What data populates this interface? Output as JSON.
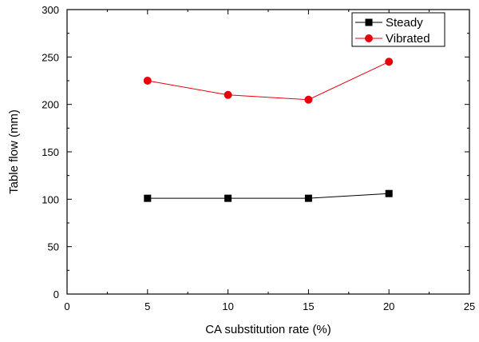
{
  "chart_data": {
    "type": "line",
    "title": "",
    "xlabel": "CA substitution rate (%)",
    "ylabel": "Table flow (mm)",
    "xlim": [
      0,
      25
    ],
    "ylim": [
      0,
      300
    ],
    "x_ticks": [
      0,
      5,
      10,
      15,
      20,
      25
    ],
    "y_ticks": [
      0,
      50,
      100,
      150,
      200,
      250,
      300
    ],
    "grid": false,
    "legend_position": "top-right",
    "series": [
      {
        "name": "Steady",
        "marker": "square",
        "color": "#000000",
        "x": [
          5,
          10,
          15,
          20
        ],
        "values": [
          101,
          101,
          101,
          106
        ]
      },
      {
        "name": "Vibrated",
        "marker": "circle",
        "color": "#e8000b",
        "x": [
          5,
          10,
          15,
          20
        ],
        "values": [
          225,
          210,
          205,
          245
        ]
      }
    ]
  }
}
